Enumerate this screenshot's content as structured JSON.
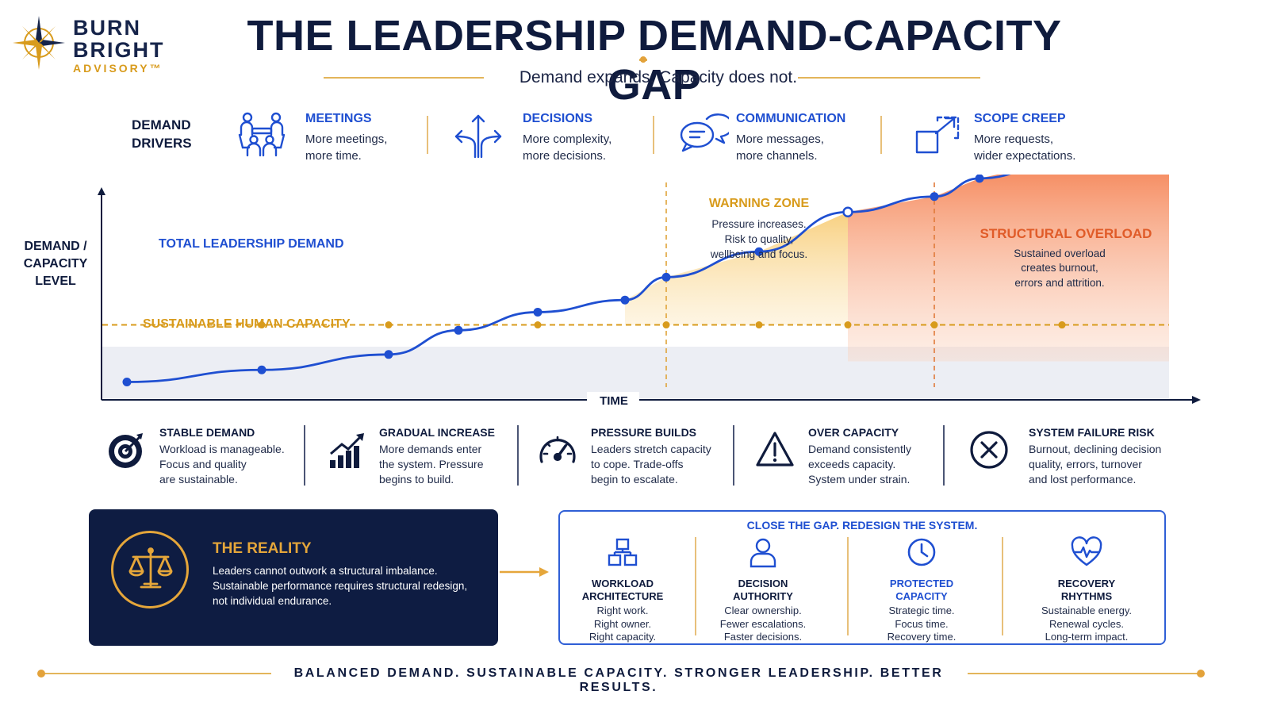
{
  "brand": {
    "line1": "BURN",
    "line2": "BRIGHT",
    "line3": "ADVISORY™"
  },
  "header": {
    "title": "THE LEADERSHIP DEMAND-CAPACITY GAP",
    "subtitle": "Demand expands. Capacity does not."
  },
  "drivers": {
    "label_line1": "DEMAND",
    "label_line2": "DRIVERS",
    "items": [
      {
        "title": "MEETINGS",
        "line1": "More meetings,",
        "line2": "more time.",
        "icon": "people-meeting-icon"
      },
      {
        "title": "DECISIONS",
        "line1": "More complexity,",
        "line2": "more decisions.",
        "icon": "branching-arrows-icon"
      },
      {
        "title": "COMMUNICATION",
        "line1": "More messages,",
        "line2": "more channels.",
        "icon": "chat-bubbles-icon"
      },
      {
        "title": "SCOPE CREEP",
        "line1": "More requests,",
        "line2": "wider expectations.",
        "icon": "expand-squares-icon"
      }
    ]
  },
  "chart": {
    "y_label_line1": "DEMAND /",
    "y_label_line2": "CAPACITY",
    "y_label_line3": "LEVEL",
    "x_label": "TIME",
    "demand_label": "TOTAL LEADERSHIP DEMAND",
    "capacity_label": "SUSTAINABLE HUMAN CAPACITY",
    "warning_title": "WARNING ZONE",
    "warning_line1": "Pressure increases.",
    "warning_line2": "Risk to quality,",
    "warning_line3": "wellbeing and focus.",
    "overload_title": "STRUCTURAL OVERLOAD",
    "overload_line1": "Sustained overload",
    "overload_line2": "creates burnout,",
    "overload_line3": "errors and attrition."
  },
  "chart_data": {
    "type": "line",
    "title": "",
    "xlabel": "TIME",
    "ylabel": "DEMAND / CAPACITY LEVEL",
    "series": [
      {
        "name": "TOTAL LEADERSHIP DEMAND",
        "x": [
          0,
          1,
          2,
          3,
          4,
          5,
          6,
          7,
          8,
          9,
          10,
          11,
          12
        ],
        "values": [
          0.1,
          0.28,
          0.51,
          0.87,
          1.14,
          1.32,
          1.66,
          2.04,
          2.63,
          2.86,
          3.13,
          3.4,
          3.76
        ]
      },
      {
        "name": "SUSTAINABLE HUMAN CAPACITY",
        "x": [
          0,
          12
        ],
        "values": [
          0.95,
          0.95
        ]
      }
    ],
    "capacity_markers_x": [
      1,
      2,
      3,
      4,
      5,
      6,
      7,
      8,
      9
    ],
    "zones": [
      {
        "name": "WARNING ZONE",
        "x_start": 5,
        "x_end": 8
      },
      {
        "name": "STRUCTURAL OVERLOAD",
        "x_start": 8,
        "x_end": 12
      }
    ],
    "grid": false,
    "colors": {
      "demand": "#1f4fd1",
      "capacity": "#d89b1c",
      "warning_fill": "#f7cf7e",
      "overload_fill": "#f47a45",
      "baseline_band": "#eceef4"
    }
  },
  "phases": [
    {
      "title": "STABLE DEMAND",
      "line1": "Workload is manageable.",
      "line2": "Focus and quality",
      "line3": "are sustainable.",
      "icon": "target-icon"
    },
    {
      "title": "GRADUAL INCREASE",
      "line1": "More demands enter",
      "line2": "the system. Pressure",
      "line3": "begins to build.",
      "icon": "rising-bars-icon"
    },
    {
      "title": "PRESSURE BUILDS",
      "line1": "Leaders stretch capacity",
      "line2": "to cope. Trade-offs",
      "line3": "begin to escalate.",
      "icon": "gauge-icon"
    },
    {
      "title": "OVER CAPACITY",
      "line1": "Demand consistently",
      "line2": "exceeds capacity.",
      "line3": "System under strain.",
      "icon": "warning-triangle-icon"
    },
    {
      "title": "SYSTEM FAILURE RISK",
      "line1": "Burnout, declining decision",
      "line2": "quality, errors, turnover",
      "line3": "and lost performance.",
      "icon": "x-circle-icon"
    }
  ],
  "reality": {
    "title": "THE REALITY",
    "line1": "Leaders cannot outwork a structural imbalance.",
    "line2": "Sustainable performance requires structural redesign,",
    "line3": "not individual endurance.",
    "icon": "balance-scale-icon"
  },
  "solutions": {
    "title": "CLOSE THE GAP. REDESIGN THE SYSTEM.",
    "items": [
      {
        "title1": "WORKLOAD",
        "title2": "ARCHITECTURE",
        "d1": "Right work.",
        "d2": "Right owner.",
        "d3": "Right capacity.",
        "icon": "org-blocks-icon"
      },
      {
        "title1": "DECISION",
        "title2": "AUTHORITY",
        "d1": "Clear ownership.",
        "d2": "Fewer escalations.",
        "d3": "Faster decisions.",
        "icon": "person-icon"
      },
      {
        "title1": "PROTECTED",
        "title2": "CAPACITY",
        "d1": "Strategic time.",
        "d2": "Focus time.",
        "d3": "Recovery time.",
        "icon": "clock-icon"
      },
      {
        "title1": "RECOVERY",
        "title2": "RHYTHMS",
        "d1": "Sustainable energy.",
        "d2": "Renewal cycles.",
        "d3": "Long-term impact.",
        "icon": "heartbeat-icon"
      }
    ]
  },
  "footer": {
    "tagline": "BALANCED DEMAND. SUSTAINABLE CAPACITY. STRONGER LEADERSHIP. BETTER RESULTS."
  }
}
